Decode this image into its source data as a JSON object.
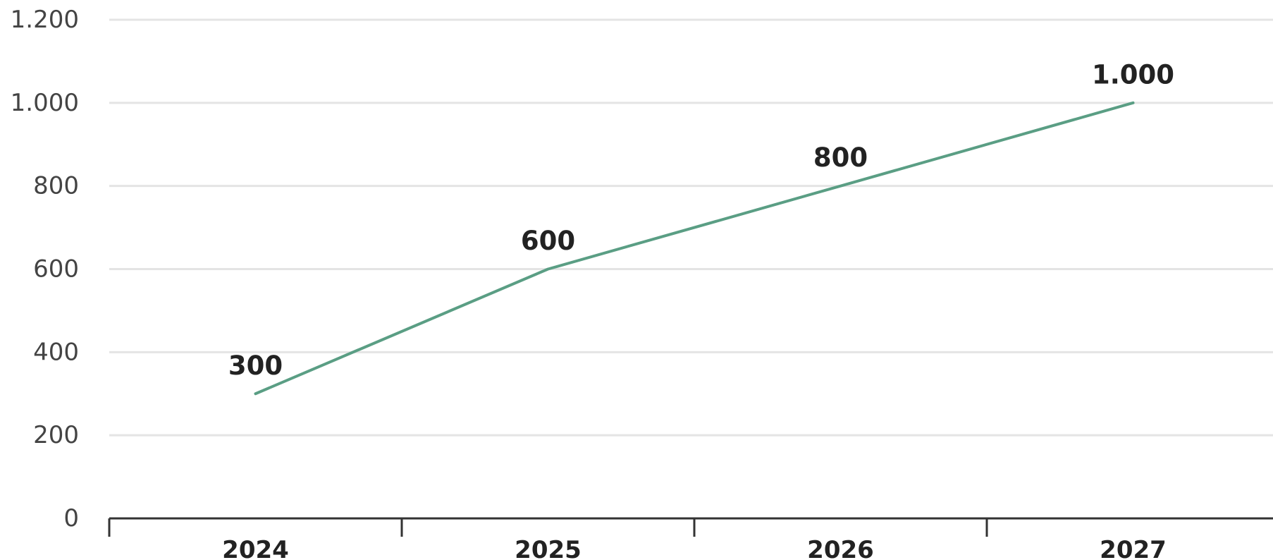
{
  "chart_data": {
    "type": "line",
    "title": "",
    "xlabel": "",
    "ylabel": "",
    "categories": [
      "2024",
      "2025",
      "2026",
      "2027"
    ],
    "series": [
      {
        "values": [
          300,
          600,
          800,
          1000
        ],
        "data_labels": [
          "300",
          "600",
          "800",
          "1.000"
        ],
        "color": "#5a9e84"
      }
    ],
    "ylim": [
      0,
      1200
    ],
    "y_ticks": [
      0,
      200,
      400,
      600,
      800,
      1000,
      1200
    ],
    "y_tick_labels": [
      "0",
      "200",
      "400",
      "600",
      "800",
      "1.000",
      "1.200"
    ],
    "grid": true,
    "legend": "none"
  }
}
